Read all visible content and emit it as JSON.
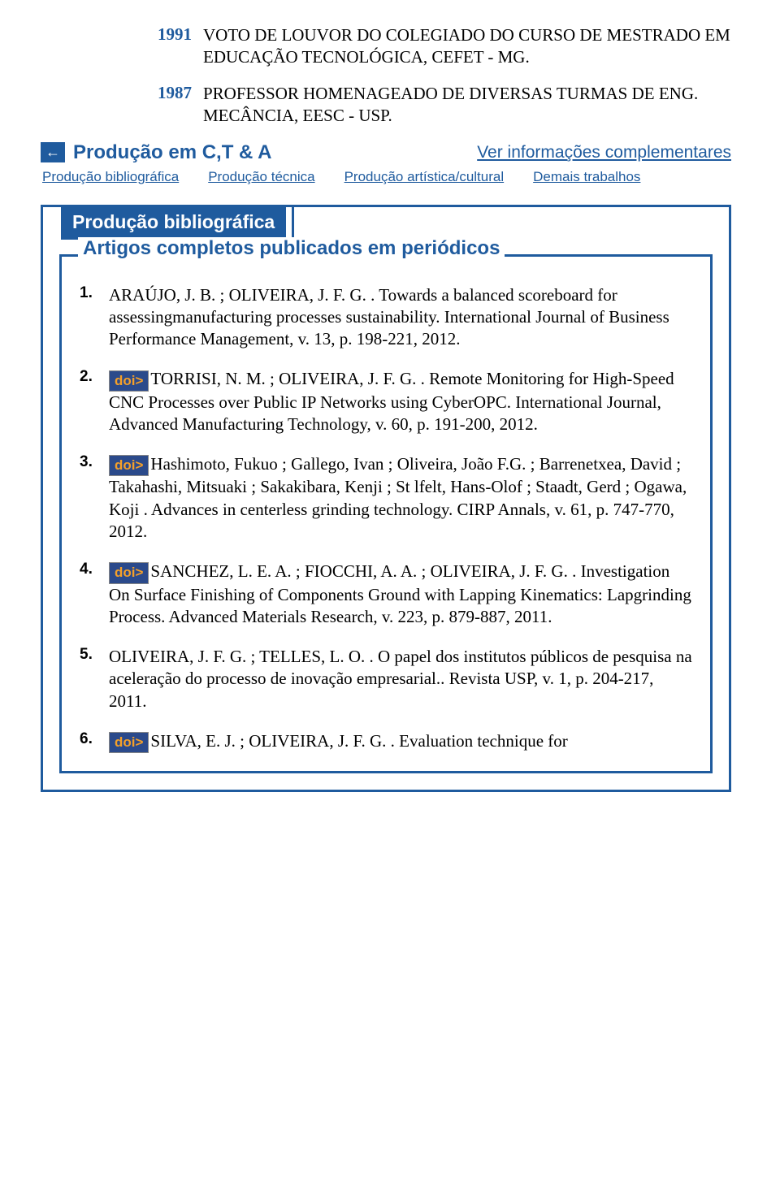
{
  "awards": [
    {
      "year": "1991",
      "text": "VOTO DE LOUVOR DO COLEGIADO DO CURSO DE MESTRADO EM EDUCAÇÃO TECNOLÓGICA, CEFET - MG."
    },
    {
      "year": "1987",
      "text": "PROFESSOR HOMENAGEADO DE DIVERSAS TURMAS DE ENG. MECÂNCIA, EESC - USP."
    }
  ],
  "section": {
    "back_icon": "←",
    "title": "Produção em C,T & A",
    "right_link": "Ver informações complementares"
  },
  "nav": [
    "Produção bibliográfica",
    "Produção técnica",
    "Produção artística/cultural",
    "Demais trabalhos"
  ],
  "outer_tab": "Produção bibliográfica",
  "inner_tab": "Artigos completos publicados em periódicos",
  "doi_label": "doi>",
  "articles": [
    {
      "num": "1.",
      "has_doi": false,
      "text": "ARAÚJO, J. B. ; OLIVEIRA, J. F. G. . Towards a balanced scoreboard for assessingmanufacturing processes sustainability. International Journal of Business Performance Management, v. 13, p. 198-221, 2012."
    },
    {
      "num": "2.",
      "has_doi": true,
      "text": "TORRISI, N. M. ; OLIVEIRA, J. F. G. . Remote Monitoring for High-Speed CNC Processes over Public IP Networks using CyberOPC. International Journal, Advanced Manufacturing Technology, v. 60, p. 191-200, 2012."
    },
    {
      "num": "3.",
      "has_doi": true,
      "text": "Hashimoto, Fukuo ; Gallego, Ivan ; Oliveira, João F.G. ; Barrenetxea, David ; Takahashi, Mitsuaki ; Sakakibara, Kenji ; St lfelt, Hans-Olof ; Staadt, Gerd ; Ogawa, Koji . Advances in centerless grinding technology. CIRP Annals, v. 61, p. 747-770, 2012."
    },
    {
      "num": "4.",
      "has_doi": true,
      "text": "SANCHEZ, L. E. A. ; FIOCCHI, A. A. ; OLIVEIRA, J. F. G. . Investigation On Surface Finishing of Components Ground with Lapping Kinematics: Lapgrinding Process. Advanced Materials Research, v. 223, p. 879-887, 2011."
    },
    {
      "num": "5.",
      "has_doi": false,
      "text": "OLIVEIRA, J. F. G. ; TELLES, L. O. . O papel dos institutos públicos de pesquisa na aceleração do processo de inovação empresarial.. Revista USP, v. 1, p. 204-217, 2011."
    },
    {
      "num": "6.",
      "has_doi": true,
      "text": "SILVA, E. J. ; OLIVEIRA, J. F. G. . Evaluation technique for"
    }
  ]
}
